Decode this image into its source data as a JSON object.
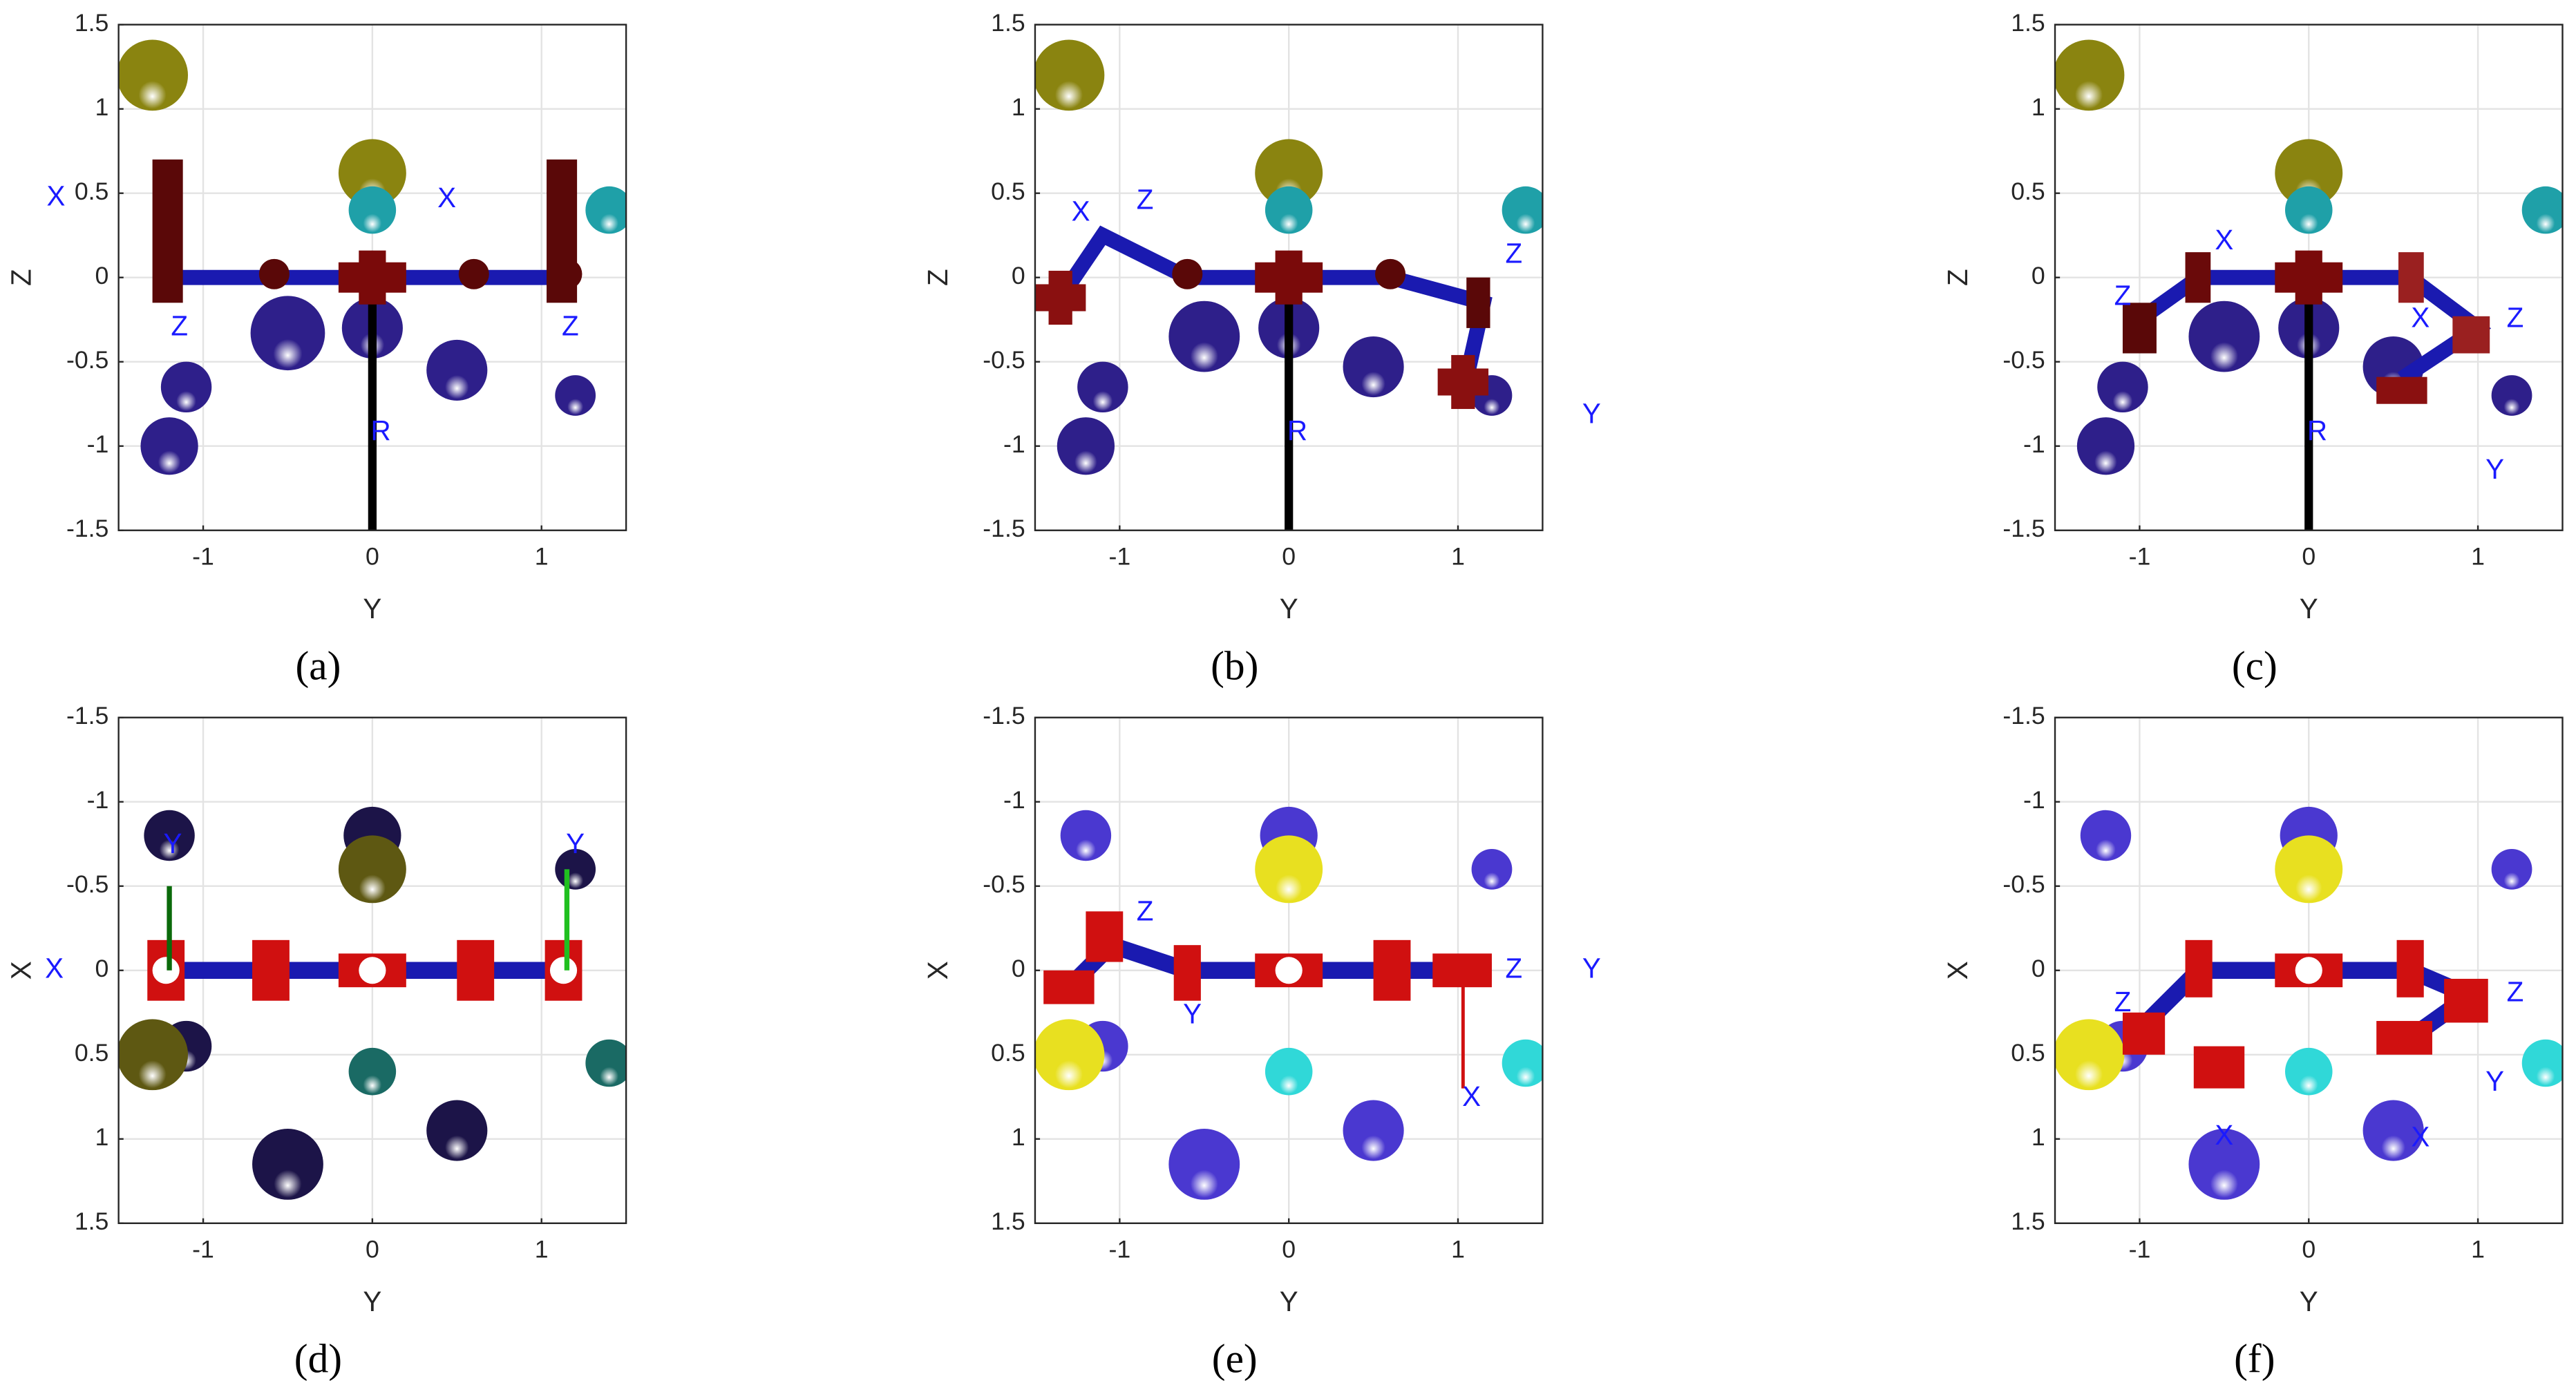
{
  "chart_data": [
    {
      "type": "scatter",
      "caption": "(a)",
      "xlabel": "Y",
      "ylabel": "Z",
      "xlim": [
        -1.5,
        1.5
      ],
      "ylim": [
        -1.5,
        1.5
      ],
      "xticks": [
        -1,
        0,
        1
      ],
      "yticks": [
        -1.5,
        -1,
        -0.5,
        0,
        0.5,
        1,
        1.5
      ],
      "grid": true,
      "series": [
        {
          "color": "#8a8410",
          "x": [
            -1.3,
            0
          ],
          "values": [
            1.2,
            0.62
          ],
          "sizes": [
            0.21,
            0.2
          ]
        },
        {
          "color": "#1fa0a8",
          "x": [
            0,
            1.4
          ],
          "values": [
            0.4,
            0.4
          ],
          "sizes": [
            0.14,
            0.14
          ]
        },
        {
          "color": "#2e1f8a",
          "x": [
            -0.5,
            0,
            0.5,
            -1.1,
            -1.2,
            1.2
          ],
          "values": [
            -0.33,
            -0.3,
            -0.55,
            -0.65,
            -1.0,
            -0.7
          ],
          "sizes": [
            0.22,
            0.18,
            0.18,
            0.15,
            0.17,
            0.12
          ]
        }
      ],
      "annotations": [
        {
          "text": "X",
          "x": -1.87,
          "y": 0.47
        },
        {
          "text": "X",
          "x": 0.44,
          "y": 0.46
        },
        {
          "text": "Z",
          "x": -1.14,
          "y": -0.3
        },
        {
          "text": "Z",
          "x": 1.17,
          "y": -0.3
        },
        {
          "text": "R",
          "x": 0.05,
          "y": -0.92
        }
      ]
    },
    {
      "type": "scatter",
      "caption": "(b)",
      "xlabel": "Y",
      "ylabel": "Z",
      "xlim": [
        -1.5,
        1.5
      ],
      "ylim": [
        -1.5,
        1.5
      ],
      "xticks": [
        -1,
        0,
        1
      ],
      "yticks": [
        -1.5,
        -1,
        -0.5,
        0,
        0.5,
        1,
        1.5
      ],
      "grid": true,
      "series": [
        {
          "color": "#8a8410",
          "x": [
            -1.3,
            0
          ],
          "values": [
            1.2,
            0.62
          ],
          "sizes": [
            0.21,
            0.2
          ]
        },
        {
          "color": "#1fa0a8",
          "x": [
            0,
            1.4
          ],
          "values": [
            0.4,
            0.4
          ],
          "sizes": [
            0.14,
            0.14
          ]
        },
        {
          "color": "#2e1f8a",
          "x": [
            -0.5,
            0,
            0.5,
            -1.1,
            -1.2,
            1.2
          ],
          "values": [
            -0.35,
            -0.3,
            -0.53,
            -0.65,
            -1.0,
            -0.7
          ],
          "sizes": [
            0.21,
            0.18,
            0.18,
            0.15,
            0.17,
            0.12
          ]
        }
      ],
      "annotations": [
        {
          "text": "X",
          "x": -1.23,
          "y": 0.38
        },
        {
          "text": "Z",
          "x": -0.85,
          "y": 0.45
        },
        {
          "text": "Z",
          "x": 1.33,
          "y": 0.13
        },
        {
          "text": "Y",
          "x": 1.79,
          "y": -0.82
        },
        {
          "text": "R",
          "x": 0.05,
          "y": -0.92
        }
      ]
    },
    {
      "type": "scatter",
      "caption": "(c)",
      "xlabel": "Y",
      "ylabel": "Z",
      "xlim": [
        -1.5,
        1.5
      ],
      "ylim": [
        -1.5,
        1.5
      ],
      "xticks": [
        -1,
        0,
        1
      ],
      "yticks": [
        -1.5,
        -1,
        -0.5,
        0,
        0.5,
        1,
        1.5
      ],
      "grid": true,
      "series": [
        {
          "color": "#8a8410",
          "x": [
            -1.3,
            0
          ],
          "values": [
            1.2,
            0.62
          ],
          "sizes": [
            0.21,
            0.2
          ]
        },
        {
          "color": "#1fa0a8",
          "x": [
            0,
            1.4
          ],
          "values": [
            0.4,
            0.4
          ],
          "sizes": [
            0.14,
            0.14
          ]
        },
        {
          "color": "#2e1f8a",
          "x": [
            -0.5,
            0,
            0.5,
            -1.1,
            -1.2,
            1.2
          ],
          "values": [
            -0.35,
            -0.3,
            -0.53,
            -0.65,
            -1.0,
            -0.7
          ],
          "sizes": [
            0.21,
            0.18,
            0.18,
            0.15,
            0.17,
            0.12
          ]
        }
      ],
      "annotations": [
        {
          "text": "X",
          "x": -0.5,
          "y": 0.21
        },
        {
          "text": "Z",
          "x": -1.1,
          "y": -0.12
        },
        {
          "text": "Z",
          "x": 1.22,
          "y": -0.25
        },
        {
          "text": "X",
          "x": 0.66,
          "y": -0.25
        },
        {
          "text": "Y",
          "x": 1.1,
          "y": -1.15
        },
        {
          "text": "R",
          "x": 0.05,
          "y": -0.92
        }
      ]
    },
    {
      "type": "scatter",
      "caption": "(d)",
      "xlabel": "Y",
      "ylabel": "X",
      "xlim": [
        -1.5,
        1.5
      ],
      "ylim": [
        1.5,
        -1.5
      ],
      "xticks": [
        -1,
        0,
        1
      ],
      "yticks": [
        -1.5,
        -1,
        -0.5,
        0,
        0.5,
        1,
        1.5
      ],
      "grid": true,
      "series": [
        {
          "color": "#1c1448",
          "x": [
            -1.2,
            0,
            1.2,
            -1.1,
            -0.5,
            0.5
          ],
          "values": [
            -0.8,
            -0.8,
            -0.6,
            0.45,
            1.15,
            0.95
          ],
          "sizes": [
            0.15,
            0.17,
            0.12,
            0.15,
            0.21,
            0.18
          ]
        },
        {
          "color": "#5e5812",
          "x": [
            -1.3,
            0
          ],
          "values": [
            0.5,
            -0.6
          ],
          "sizes": [
            0.21,
            0.2
          ]
        },
        {
          "color": "#1a6a64",
          "x": [
            0,
            1.4
          ],
          "values": [
            0.6,
            0.55
          ],
          "sizes": [
            0.14,
            0.14
          ]
        }
      ],
      "annotations": [
        {
          "text": "X",
          "x": -1.88,
          "y": 0
        },
        {
          "text": "Y",
          "x": -1.18,
          "y": -0.74
        },
        {
          "text": "Y",
          "x": 1.2,
          "y": -0.74
        }
      ]
    },
    {
      "type": "scatter",
      "caption": "(e)",
      "xlabel": "Y",
      "ylabel": "X",
      "xlim": [
        -1.5,
        1.5
      ],
      "ylim": [
        1.5,
        -1.5
      ],
      "xticks": [
        -1,
        0,
        1
      ],
      "yticks": [
        -1.5,
        -1,
        -0.5,
        0,
        0.5,
        1,
        1.5
      ],
      "grid": true,
      "series": [
        {
          "color": "#4a38d0",
          "x": [
            -1.2,
            0,
            1.2,
            -1.1,
            -0.5,
            0.5
          ],
          "values": [
            -0.8,
            -0.8,
            -0.6,
            0.45,
            1.15,
            0.95
          ],
          "sizes": [
            0.15,
            0.17,
            0.12,
            0.15,
            0.21,
            0.18
          ]
        },
        {
          "color": "#e8e020",
          "x": [
            -1.3,
            0
          ],
          "values": [
            0.5,
            -0.6
          ],
          "sizes": [
            0.21,
            0.2
          ]
        },
        {
          "color": "#30d8d8",
          "x": [
            0,
            1.4
          ],
          "values": [
            0.6,
            0.55
          ],
          "sizes": [
            0.14,
            0.14
          ]
        }
      ],
      "annotations": [
        {
          "text": "Z",
          "x": -0.85,
          "y": -0.34
        },
        {
          "text": "Y",
          "x": -0.57,
          "y": 0.27
        },
        {
          "text": "Z",
          "x": 1.33,
          "y": 0
        },
        {
          "text": "Y",
          "x": 1.79,
          "y": 0
        },
        {
          "text": "X",
          "x": 1.08,
          "y": 0.76
        }
      ]
    },
    {
      "type": "scatter",
      "caption": "(f)",
      "xlabel": "Y",
      "ylabel": "X",
      "xlim": [
        -1.5,
        1.5
      ],
      "ylim": [
        1.5,
        -1.5
      ],
      "xticks": [
        -1,
        0,
        1
      ],
      "yticks": [
        -1.5,
        -1,
        -0.5,
        0,
        0.5,
        1,
        1.5
      ],
      "grid": true,
      "series": [
        {
          "color": "#4a38d0",
          "x": [
            -1.2,
            0,
            1.2,
            -1.1,
            -0.5,
            0.5
          ],
          "values": [
            -0.8,
            -0.8,
            -0.6,
            0.45,
            1.15,
            0.95
          ],
          "sizes": [
            0.15,
            0.17,
            0.12,
            0.15,
            0.21,
            0.18
          ]
        },
        {
          "color": "#e8e020",
          "x": [
            -1.3,
            0
          ],
          "values": [
            0.5,
            -0.6
          ],
          "sizes": [
            0.21,
            0.2
          ]
        },
        {
          "color": "#30d8d8",
          "x": [
            0,
            1.4
          ],
          "values": [
            0.6,
            0.55
          ],
          "sizes": [
            0.14,
            0.14
          ]
        }
      ],
      "annotations": [
        {
          "text": "Z",
          "x": -1.1,
          "y": 0.2
        },
        {
          "text": "X",
          "x": -0.5,
          "y": 0.99
        },
        {
          "text": "Z",
          "x": 1.22,
          "y": 0.14
        },
        {
          "text": "Y",
          "x": 1.1,
          "y": 0.67
        },
        {
          "text": "X",
          "x": 0.66,
          "y": 1.0
        }
      ]
    }
  ]
}
